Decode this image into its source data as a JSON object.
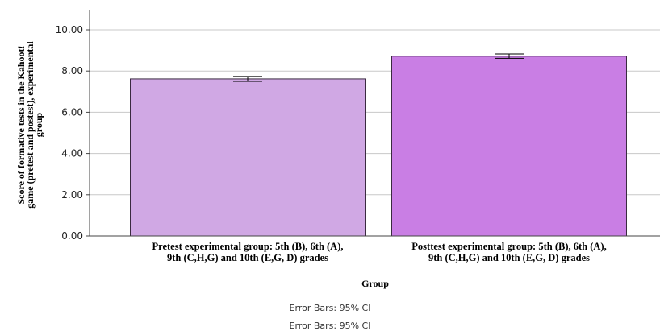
{
  "chart_data": {
    "type": "bar",
    "title": "",
    "categories": [
      [
        "Pretest experimental group: 5th (B), 6th (A),",
        "9th (C,H,G) and 10th (E,G, D) grades"
      ],
      [
        "Posttest experimental group: 5th (B), 6th (A),",
        "9th (C,H,G) and 10th (E,G, D) grades"
      ]
    ],
    "values": [
      7.62,
      8.72
    ],
    "error_bars": [
      [
        7.5,
        7.74
      ],
      [
        8.62,
        8.83
      ]
    ],
    "bar_colors": [
      "#d0a8e4",
      "#c97ee4"
    ],
    "xlabel": "Group",
    "ylabel": [
      "Score of formative tests in the Kahoot!",
      "game (pretest and postest), experimental",
      "group"
    ],
    "ylim": [
      0,
      10
    ],
    "yticks": [
      "0.00",
      "2.00",
      "4.00",
      "6.00",
      "8.00",
      "10.00"
    ],
    "grid": true,
    "notes": [
      "Error Bars: 95% CI",
      "Error Bars: 95% CI"
    ]
  }
}
